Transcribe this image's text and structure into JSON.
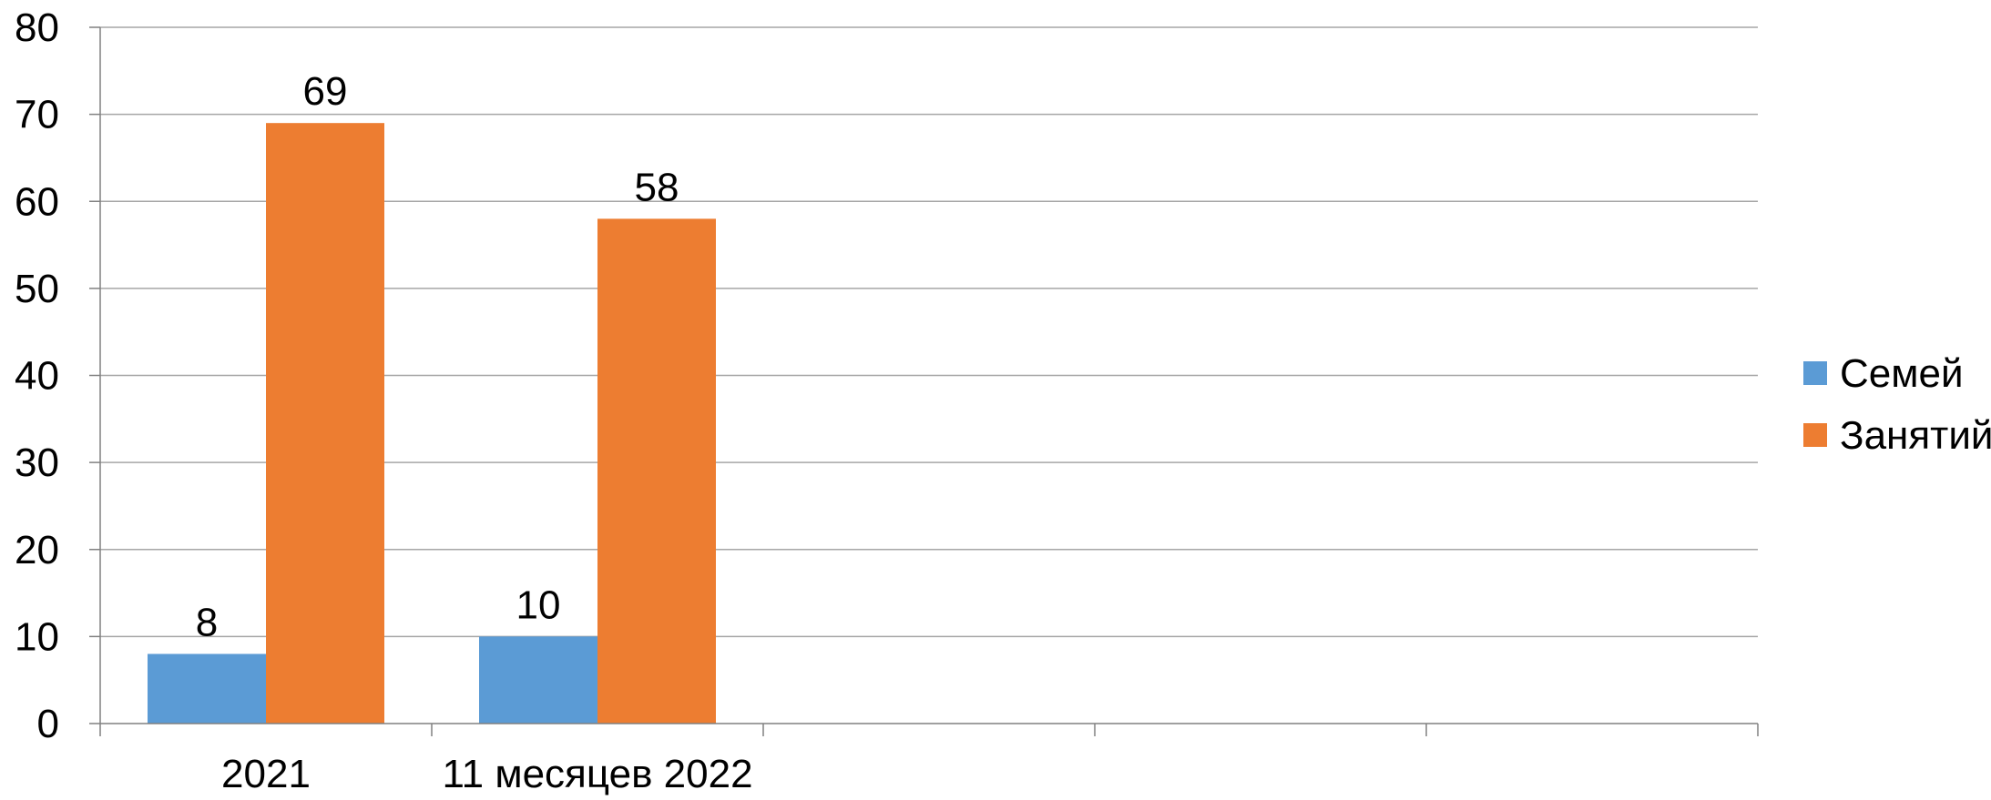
{
  "chart_data": {
    "type": "bar",
    "categories": [
      "2021",
      "11 месяцев 2022",
      "",
      "",
      ""
    ],
    "series": [
      {
        "name": "Семей",
        "values": [
          8,
          10,
          null,
          null,
          null
        ],
        "color": "#5B9BD5"
      },
      {
        "name": "Занятий",
        "values": [
          69,
          58,
          null,
          null,
          null
        ],
        "color": "#ED7D31"
      }
    ],
    "ylim": [
      0,
      80
    ],
    "yticks": [
      0,
      10,
      20,
      30,
      40,
      50,
      60,
      70,
      80
    ],
    "grid": true,
    "legend_position": "right",
    "data_labels": true,
    "title": "",
    "xlabel": "",
    "ylabel": ""
  },
  "colors": {
    "gridline": "#A6A6A6",
    "axis": "#808080",
    "text": "#000000"
  }
}
